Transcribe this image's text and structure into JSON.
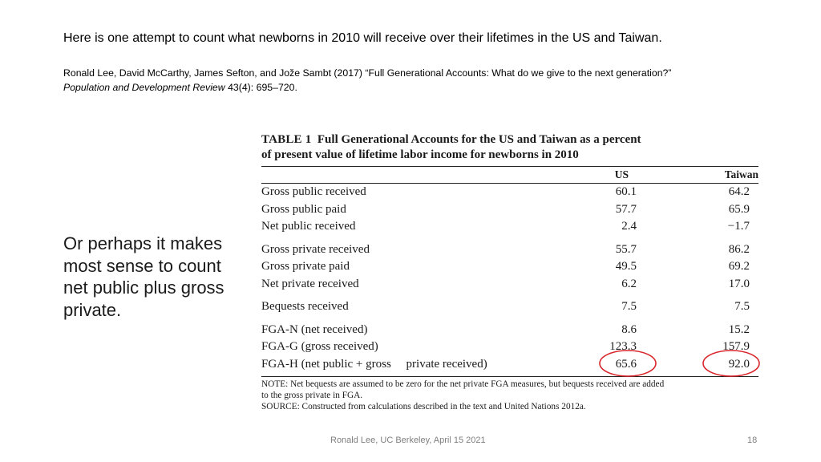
{
  "headline": "Here is one attempt to count what newborns in 2010 will receive over their lifetimes in the US and Taiwan.",
  "citation": {
    "line1": "Ronald Lee, David McCarthy, James Sefton, and Jože Sambt (2017) “Full Generational Accounts: What do we give to the next generation?”",
    "journal": "Population and Development Review",
    "details": " 43(4): 695–720."
  },
  "side_text": "Or perhaps it makes most sense to count net public plus gross private.",
  "table": {
    "label": "TABLE 1",
    "title_line1": "Full Generational Accounts for the US and Taiwan as a percent",
    "title_line2": "of present value of lifetime labor income for newborns in 2010",
    "col_us": "US",
    "col_taiwan": "Taiwan",
    "groups": [
      [
        {
          "label": "Gross public received",
          "us": "60.1",
          "taiwan": "64.2"
        },
        {
          "label": "Gross public paid",
          "us": "57.7",
          "taiwan": "65.9"
        },
        {
          "label": "Net public received",
          "us": "2.4",
          "taiwan": "−1.7"
        }
      ],
      [
        {
          "label": "Gross private received",
          "us": "55.7",
          "taiwan": "86.2"
        },
        {
          "label": "Gross private paid",
          "us": "49.5",
          "taiwan": "69.2"
        },
        {
          "label": "Net private received",
          "us": "6.2",
          "taiwan": "17.0"
        }
      ],
      [
        {
          "label": "Bequests received",
          "us": "7.5",
          "taiwan": "7.5"
        }
      ],
      [
        {
          "label": "FGA-N (net received)",
          "us": "8.6",
          "taiwan": "15.2"
        },
        {
          "label": "FGA-G (gross received)",
          "us": "123.3",
          "taiwan": "157.9"
        },
        {
          "label": "FGA-H (net public + gross     private received)",
          "us": "65.6",
          "taiwan": "92.0"
        }
      ]
    ],
    "note_line1": "NOTE: Net bequests are assumed to be zero for the net private FGA measures, but bequests received are added",
    "note_line2": "to the gross private in FGA.",
    "source": "SOURCE: Constructed from calculations described in the text and United Nations 2012a.",
    "highlight_color": "#d9262b"
  },
  "footer": "Ronald Lee, UC Berkeley, April 15 2021",
  "page_number": "18"
}
